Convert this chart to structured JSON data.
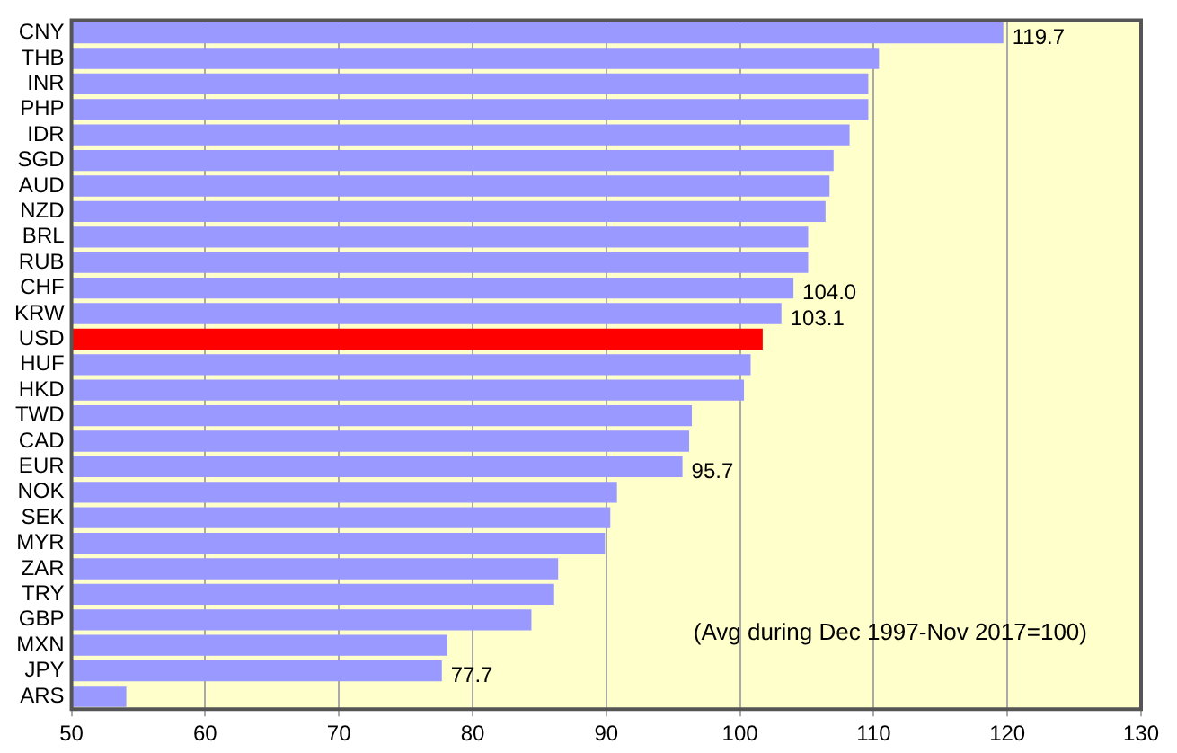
{
  "chart_data": {
    "type": "bar",
    "orientation": "horizontal",
    "categories": [
      "CNY",
      "THB",
      "INR",
      "PHP",
      "IDR",
      "SGD",
      "AUD",
      "NZD",
      "BRL",
      "RUB",
      "CHF",
      "KRW",
      "USD",
      "HUF",
      "HKD",
      "TWD",
      "CAD",
      "EUR",
      "NOK",
      "SEK",
      "MYR",
      "ZAR",
      "TRY",
      "GBP",
      "MXN",
      "JPY",
      "ARS"
    ],
    "values": [
      119.7,
      110.4,
      109.6,
      109.6,
      108.2,
      107.0,
      106.7,
      106.4,
      105.1,
      105.1,
      104.0,
      103.1,
      101.7,
      100.8,
      100.3,
      96.4,
      96.2,
      95.7,
      90.8,
      90.3,
      89.9,
      86.4,
      86.1,
      84.4,
      78.1,
      77.7,
      54.1
    ],
    "colors": [
      "#9999ff",
      "#9999ff",
      "#9999ff",
      "#9999ff",
      "#9999ff",
      "#9999ff",
      "#9999ff",
      "#9999ff",
      "#9999ff",
      "#9999ff",
      "#9999ff",
      "#9999ff",
      "#ff0000",
      "#9999ff",
      "#9999ff",
      "#9999ff",
      "#9999ff",
      "#9999ff",
      "#9999ff",
      "#9999ff",
      "#9999ff",
      "#9999ff",
      "#9999ff",
      "#9999ff",
      "#9999ff",
      "#9999ff",
      "#9999ff"
    ],
    "value_labels": [
      "119.7",
      null,
      null,
      null,
      null,
      null,
      null,
      null,
      null,
      null,
      "104.0",
      "103.1",
      null,
      null,
      null,
      null,
      null,
      "95.7",
      null,
      null,
      null,
      null,
      null,
      null,
      null,
      "77.7",
      null
    ],
    "xlim": [
      50,
      130
    ],
    "xticks": [
      50,
      60,
      70,
      80,
      90,
      100,
      110,
      120,
      130
    ],
    "grid": "x",
    "legend": false,
    "annotations": [
      "(Avg during Dec 1997-Nov 2017=100)"
    ]
  }
}
